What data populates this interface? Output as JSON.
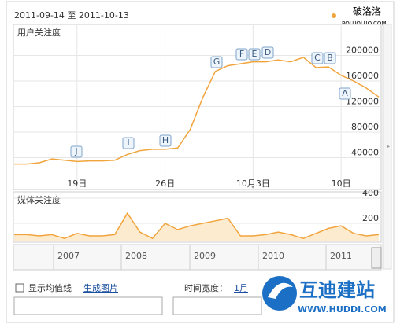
{
  "header": {
    "date_range": "2011-09-14 至 2011-10-13"
  },
  "watermark_top": {
    "name": "破洛洛",
    "url": "POLUOLUO.COM"
  },
  "chart_data": [
    {
      "type": "line",
      "title": "用户关注度",
      "categories": [
        null,
        null,
        null,
        null,
        null,
        "19日",
        null,
        null,
        null,
        null,
        null,
        null,
        "26日",
        null,
        null,
        null,
        null,
        null,
        null,
        "10月3日",
        null,
        null,
        null,
        null,
        null,
        null,
        "10日",
        null,
        null,
        null
      ],
      "series": [
        {
          "color": "#f2a43c",
          "values": [
            30000,
            30000,
            32000,
            38000,
            36000,
            34000,
            35000,
            35000,
            36000,
            45000,
            51000,
            53000,
            53000,
            55000,
            84000,
            134000,
            175000,
            184000,
            187000,
            190000,
            190000,
            193000,
            190000,
            197000,
            181000,
            182000,
            169000,
            160000,
            149000,
            135000
          ]
        }
      ],
      "ylim": [
        0,
        240000
      ],
      "yticks": [
        40000,
        80000,
        120000,
        160000,
        200000
      ],
      "grid": true,
      "annotations": [
        "J",
        "I",
        "H",
        "G",
        "F",
        "E",
        "D",
        "C",
        "B",
        "A"
      ]
    },
    {
      "type": "area",
      "title": "媒体关注度",
      "series": [
        {
          "color": "#f2a43c",
          "values": [
            110,
            110,
            100,
            110,
            80,
            120,
            100,
            100,
            110,
            280,
            130,
            80,
            200,
            150,
            180,
            200,
            220,
            240,
            100,
            100,
            110,
            130,
            110,
            80,
            120,
            160,
            180,
            120,
            100,
            110
          ]
        }
      ],
      "ylim": [
        0,
        400
      ],
      "yticks": [
        200,
        400
      ],
      "grid": true
    }
  ],
  "timeline": [
    "2007",
    "2008",
    "2009",
    "2010",
    "2011"
  ],
  "controls": {
    "mean_line": "显示均值线",
    "make_image": "生成图片",
    "width_label": "时间宽度：",
    "width_value": "1月"
  },
  "watermark_bottom": {
    "name": "互迪建站",
    "url": "WWW.HUDDI.COM"
  }
}
